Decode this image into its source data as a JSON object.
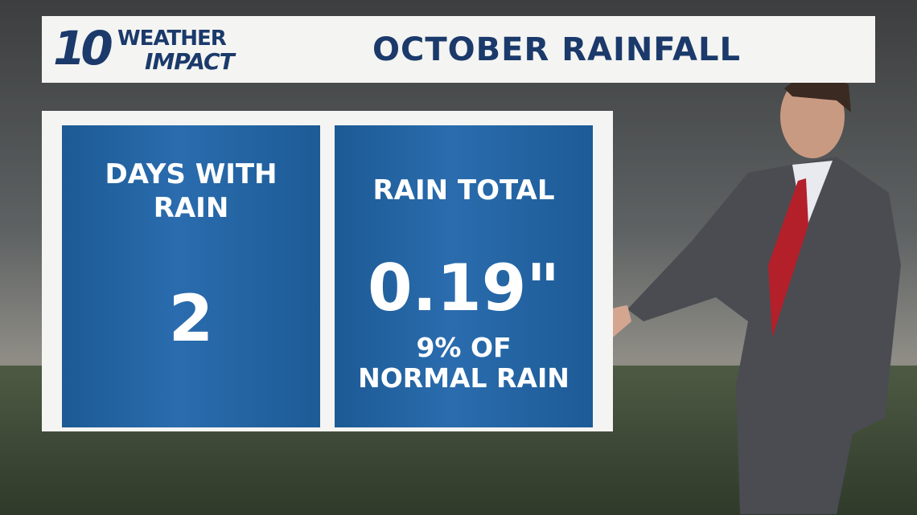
{
  "header": {
    "logo": {
      "number": "10",
      "line1": "WEATHER",
      "line2": "IMPACT"
    },
    "title": "OCTOBER RAINFALL"
  },
  "panels": [
    {
      "label_lines": [
        "DAYS WITH",
        "RAIN"
      ],
      "value": "2"
    },
    {
      "label_lines": [
        "RAIN TOTAL"
      ],
      "value": "0.19\"",
      "note_lines": [
        "9% OF",
        "NORMAL RAIN"
      ]
    }
  ]
}
